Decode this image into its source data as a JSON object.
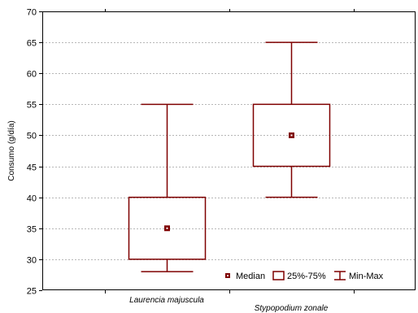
{
  "chart_data": {
    "type": "box",
    "title": "",
    "xlabel": "",
    "ylabel": "Consumo (g/día)",
    "ylim": [
      25,
      70
    ],
    "yticks": [
      25,
      30,
      35,
      40,
      45,
      50,
      55,
      60,
      65,
      70
    ],
    "grid": true,
    "categories": [
      "Laurencia majuscula",
      "Stypopodium zonale"
    ],
    "boxes": [
      {
        "category": "Laurencia majuscula",
        "median": 35,
        "q1": 30,
        "q3": 40,
        "min": 28,
        "max": 55
      },
      {
        "category": "Stypopodium zonale",
        "median": 50,
        "q1": 45,
        "q3": 55,
        "min": 40,
        "max": 65
      }
    ],
    "legend": {
      "placement": "bottom-right",
      "entries": [
        "Median",
        "25%-75%",
        "Min-Max"
      ]
    },
    "colors": {
      "series": "#7f0000",
      "grid": "#a0a0a0",
      "axis": "#000000"
    }
  }
}
